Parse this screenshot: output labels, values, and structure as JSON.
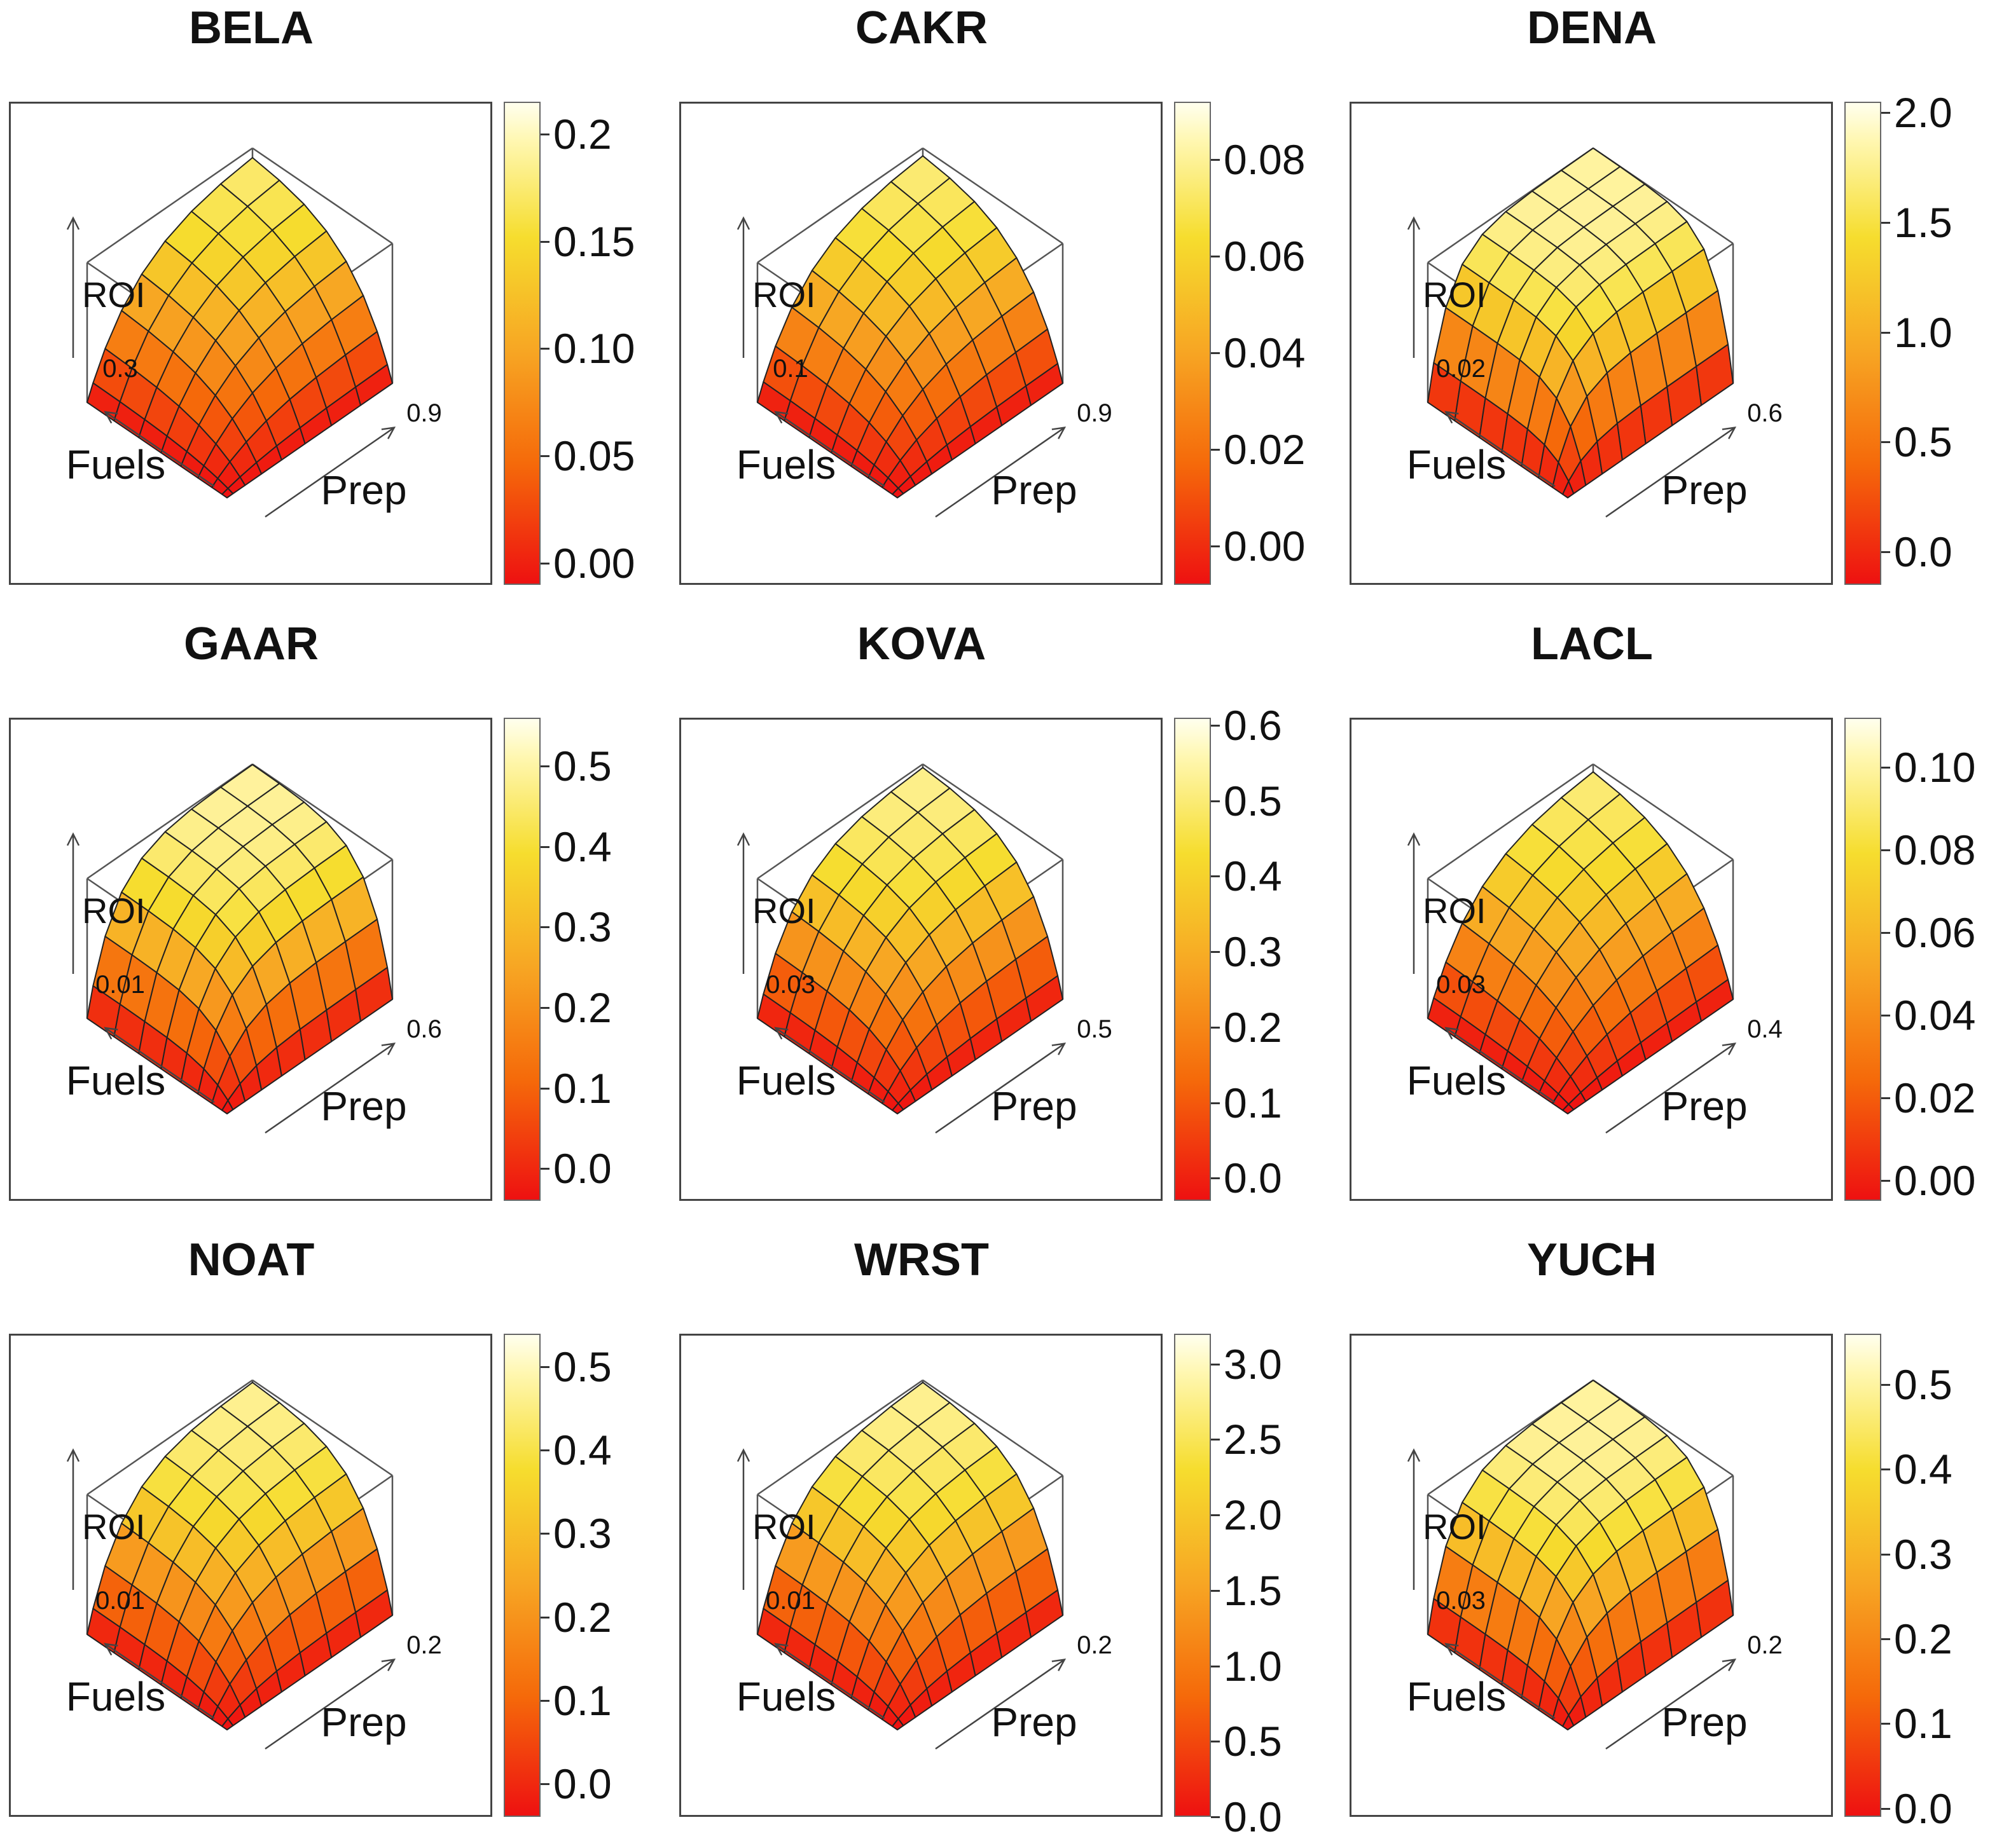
{
  "figure": {
    "axis_labels": {
      "z": "ROI",
      "x": "Fuels",
      "y": "Prep"
    }
  },
  "colors": {
    "low": "#ee1111",
    "mid": "#f7a523",
    "high": "#fff7b0"
  },
  "chart_data": [
    {
      "type": "surface",
      "title": "BELA",
      "x_corner_label": "0.3",
      "y_corner_label": "0.9",
      "colorbar_ticks": [
        "0.00",
        "0.05",
        "0.10",
        "0.15",
        "0.2"
      ],
      "colorbar_range": [
        -0.01,
        0.215
      ],
      "ridge": 0.85
    },
    {
      "type": "surface",
      "title": "CAKR",
      "x_corner_label": "0.1",
      "y_corner_label": "0.9",
      "colorbar_ticks": [
        "0.00",
        "0.02",
        "0.04",
        "0.06",
        "0.08"
      ],
      "colorbar_range": [
        -0.008,
        0.092
      ],
      "ridge": 0.8
    },
    {
      "type": "surface",
      "title": "DENA",
      "x_corner_label": "0.02",
      "y_corner_label": "0.6",
      "colorbar_ticks": [
        "0.0",
        "0.5",
        "1.0",
        "1.5",
        "2.0"
      ],
      "colorbar_range": [
        -0.15,
        2.05
      ],
      "ridge": 0.35
    },
    {
      "type": "surface",
      "title": "GAAR",
      "x_corner_label": "0.01",
      "y_corner_label": "0.6",
      "colorbar_ticks": [
        "0.0",
        "0.1",
        "0.2",
        "0.3",
        "0.4",
        "0.5"
      ],
      "colorbar_range": [
        -0.04,
        0.56
      ],
      "ridge": 0.45
    },
    {
      "type": "surface",
      "title": "KOVA",
      "x_corner_label": "0.03",
      "y_corner_label": "0.5",
      "colorbar_ticks": [
        "0.0",
        "0.1",
        "0.2",
        "0.3",
        "0.4",
        "0.5",
        "0.6"
      ],
      "colorbar_range": [
        -0.03,
        0.61
      ],
      "ridge": 0.65
    },
    {
      "type": "surface",
      "title": "LACL",
      "x_corner_label": "0.03",
      "y_corner_label": "0.4",
      "colorbar_ticks": [
        "0.00",
        "0.02",
        "0.04",
        "0.06",
        "0.08",
        "0.10"
      ],
      "colorbar_range": [
        -0.005,
        0.112
      ],
      "ridge": 0.8
    },
    {
      "type": "surface",
      "title": "NOAT",
      "x_corner_label": "0.01",
      "y_corner_label": "0.2",
      "colorbar_ticks": [
        "0.0",
        "0.1",
        "0.2",
        "0.3",
        "0.4",
        "0.5"
      ],
      "colorbar_range": [
        -0.04,
        0.54
      ],
      "ridge": 0.6
    },
    {
      "type": "surface",
      "title": "WRST",
      "x_corner_label": "0.01",
      "y_corner_label": "0.2",
      "colorbar_ticks": [
        "0.0",
        "0.5",
        "1.0",
        "1.5",
        "2.0",
        "2.5",
        "3.0"
      ],
      "colorbar_range": [
        0.0,
        3.2
      ],
      "ridge": 0.6
    },
    {
      "type": "surface",
      "title": "YUCH",
      "x_corner_label": "0.03",
      "y_corner_label": "0.2",
      "colorbar_ticks": [
        "0.0",
        "0.1",
        "0.2",
        "0.3",
        "0.4",
        "0.5"
      ],
      "colorbar_range": [
        -0.01,
        0.56
      ],
      "ridge": 0.4
    }
  ]
}
